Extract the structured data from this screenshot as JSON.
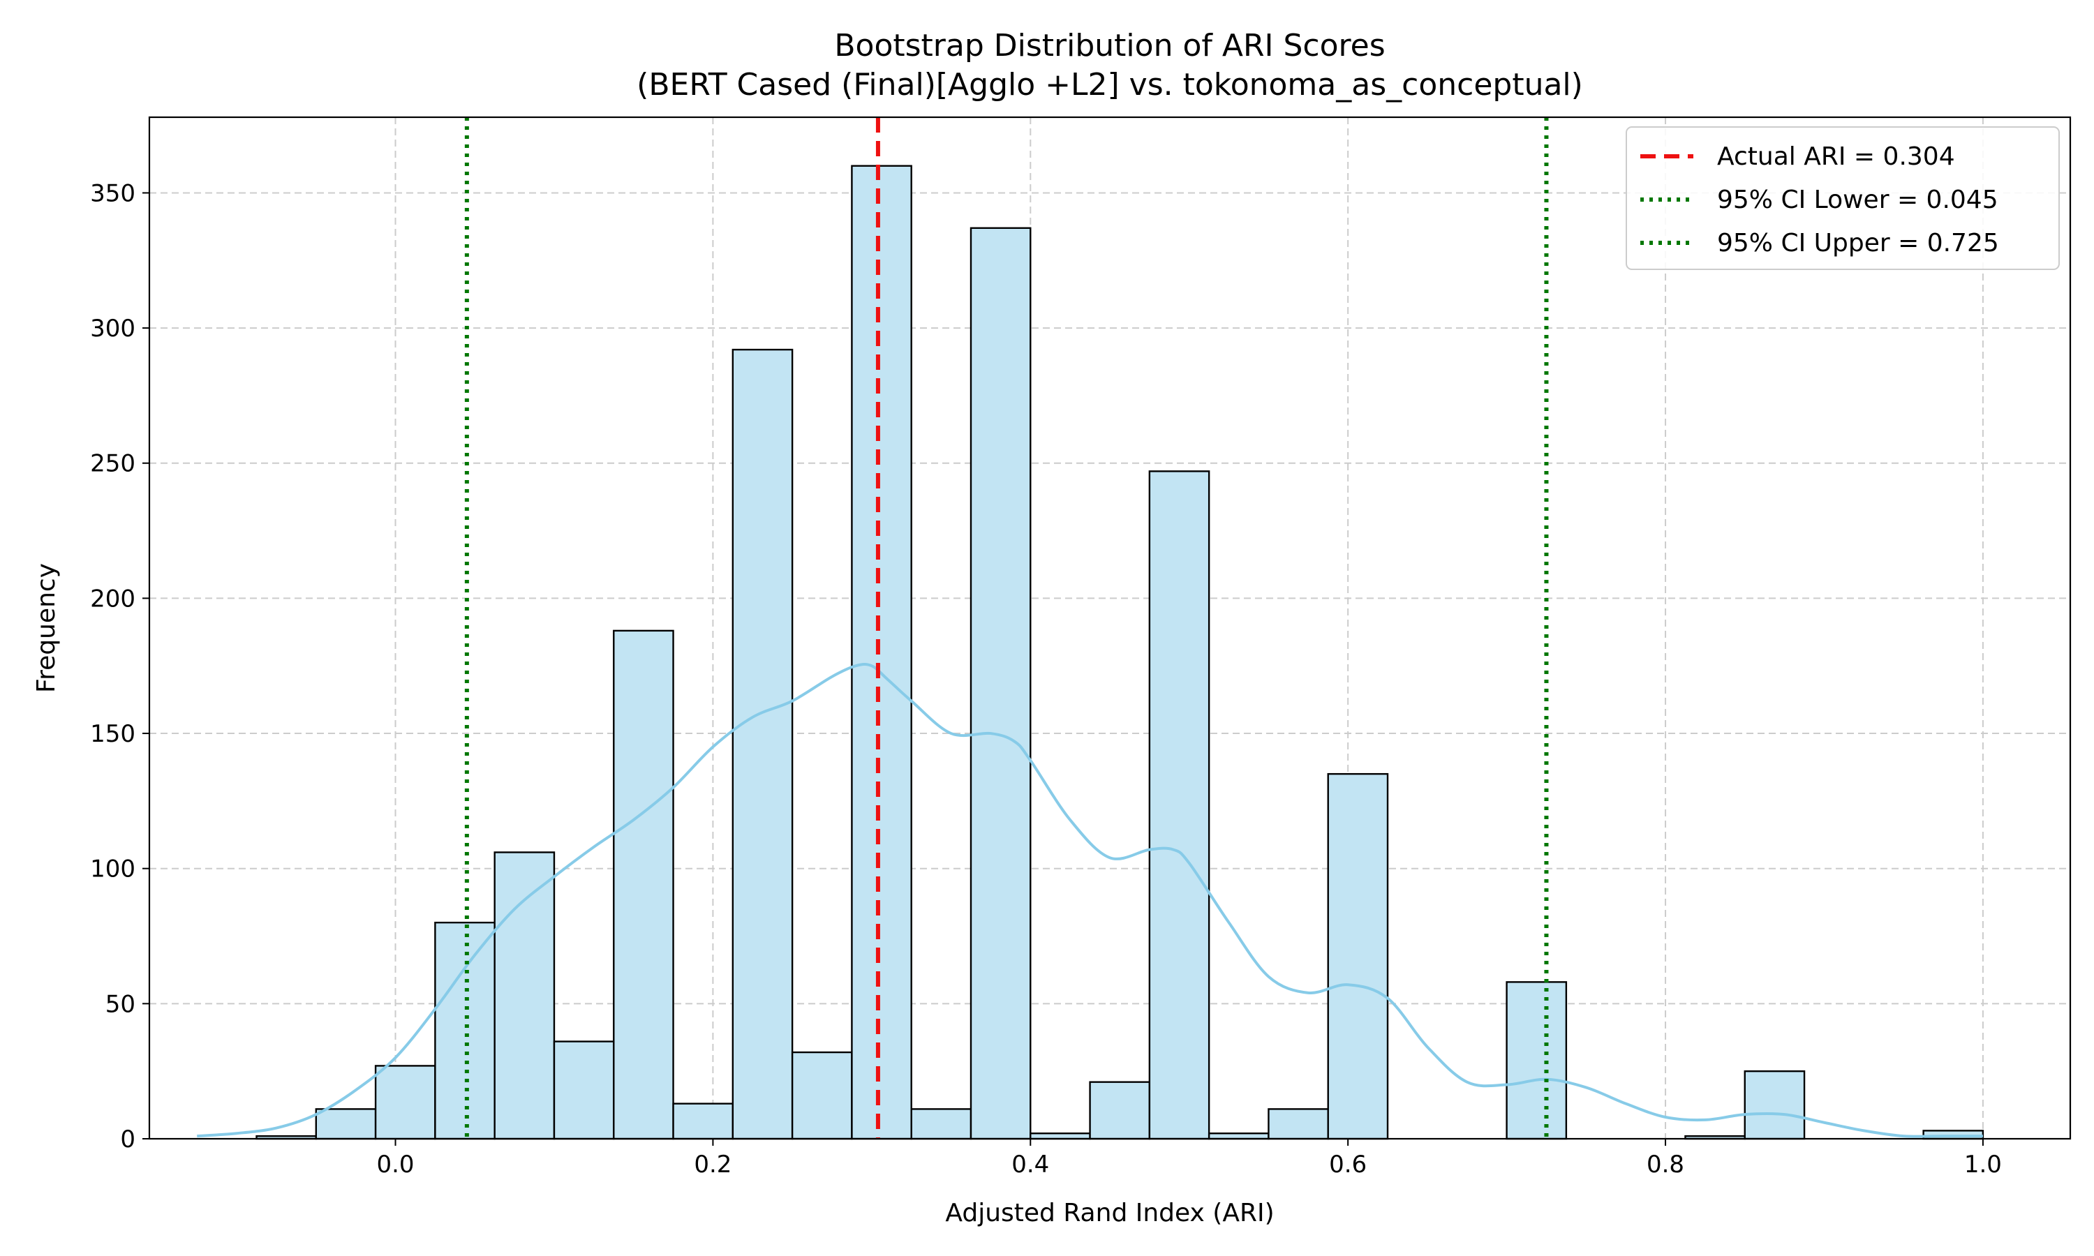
{
  "chart_data": {
    "type": "bar",
    "title_line1": "Bootstrap Distribution of ARI Scores",
    "title_line2": "(BERT Cased (Final)[Agglo +L2] vs. tokonoma_as_conceptual)",
    "xlabel": "Adjusted Rand Index (ARI)",
    "ylabel": "Frequency",
    "xlim": [
      -0.155,
      1.055
    ],
    "ylim": [
      0,
      378
    ],
    "grid": true,
    "legend_position": "top-right",
    "x_ticks": [
      0.0,
      0.2,
      0.4,
      0.6,
      0.8,
      1.0
    ],
    "x_tick_labels": [
      "0.0",
      "0.2",
      "0.4",
      "0.6",
      "0.8",
      "1.0"
    ],
    "y_ticks": [
      0,
      50,
      100,
      150,
      200,
      250,
      300,
      350
    ],
    "y_tick_labels": [
      "0",
      "50",
      "100",
      "150",
      "200",
      "250",
      "300",
      "350"
    ],
    "bins": [
      {
        "x0": -0.125,
        "x1": -0.0875,
        "count": 0
      },
      {
        "x0": -0.0875,
        "x1": -0.05,
        "count": 1
      },
      {
        "x0": -0.05,
        "x1": -0.0125,
        "count": 11
      },
      {
        "x0": -0.0125,
        "x1": 0.025,
        "count": 27
      },
      {
        "x0": 0.025,
        "x1": 0.0625,
        "count": 80
      },
      {
        "x0": 0.0625,
        "x1": 0.1,
        "count": 106
      },
      {
        "x0": 0.1,
        "x1": 0.1375,
        "count": 36
      },
      {
        "x0": 0.1375,
        "x1": 0.175,
        "count": 188
      },
      {
        "x0": 0.175,
        "x1": 0.2125,
        "count": 13
      },
      {
        "x0": 0.2125,
        "x1": 0.25,
        "count": 292
      },
      {
        "x0": 0.25,
        "x1": 0.2875,
        "count": 32
      },
      {
        "x0": 0.2875,
        "x1": 0.325,
        "count": 360
      },
      {
        "x0": 0.325,
        "x1": 0.3625,
        "count": 11
      },
      {
        "x0": 0.3625,
        "x1": 0.4,
        "count": 337
      },
      {
        "x0": 0.4,
        "x1": 0.4375,
        "count": 2
      },
      {
        "x0": 0.4375,
        "x1": 0.475,
        "count": 21
      },
      {
        "x0": 0.475,
        "x1": 0.5125,
        "count": 247
      },
      {
        "x0": 0.5125,
        "x1": 0.55,
        "count": 2
      },
      {
        "x0": 0.55,
        "x1": 0.5875,
        "count": 11
      },
      {
        "x0": 0.5875,
        "x1": 0.625,
        "count": 135
      },
      {
        "x0": 0.625,
        "x1": 0.6625,
        "count": 0
      },
      {
        "x0": 0.6625,
        "x1": 0.7,
        "count": 0
      },
      {
        "x0": 0.7,
        "x1": 0.7375,
        "count": 58
      },
      {
        "x0": 0.7375,
        "x1": 0.775,
        "count": 0
      },
      {
        "x0": 0.775,
        "x1": 0.8125,
        "count": 0
      },
      {
        "x0": 0.8125,
        "x1": 0.85,
        "count": 1
      },
      {
        "x0": 0.85,
        "x1": 0.8875,
        "count": 25
      },
      {
        "x0": 0.8875,
        "x1": 0.925,
        "count": 0
      },
      {
        "x0": 0.925,
        "x1": 0.9625,
        "count": 0
      },
      {
        "x0": 0.9625,
        "x1": 1.0,
        "count": 3
      }
    ],
    "kde": {
      "x": [
        -0.125,
        -0.1,
        -0.075,
        -0.05,
        -0.025,
        0.0,
        0.025,
        0.05,
        0.075,
        0.1,
        0.125,
        0.15,
        0.175,
        0.2,
        0.225,
        0.25,
        0.275,
        0.29,
        0.3,
        0.31,
        0.325,
        0.35,
        0.375,
        0.39,
        0.4,
        0.425,
        0.45,
        0.475,
        0.49,
        0.5,
        0.525,
        0.55,
        0.575,
        0.6,
        0.625,
        0.65,
        0.675,
        0.7,
        0.725,
        0.75,
        0.775,
        0.8,
        0.825,
        0.85,
        0.875,
        0.9,
        0.925,
        0.95,
        0.975,
        1.0
      ],
      "y": [
        1,
        2,
        4,
        9,
        18,
        30,
        48,
        68,
        85,
        97,
        108,
        118,
        130,
        145,
        156,
        162,
        171,
        175,
        175,
        170,
        162,
        150,
        150,
        147,
        140,
        118,
        104,
        107,
        107,
        102,
        80,
        60,
        54,
        57,
        52,
        34,
        21,
        20,
        22,
        19,
        13,
        8,
        7,
        9,
        9,
        6,
        3,
        1,
        1,
        1
      ]
    },
    "series": [
      {
        "name": "Actual ARI = 0.304",
        "x": 0.304,
        "color": "#ee1111",
        "style": "dashed"
      },
      {
        "name": "95% CI Lower = 0.045",
        "x": 0.045,
        "color": "#007700",
        "style": "dotted"
      },
      {
        "name": "95% CI Upper = 0.725",
        "x": 0.725,
        "color": "#007700",
        "style": "dotted"
      }
    ],
    "colors": {
      "bar_fill": "#c2e4f3",
      "bar_edge": "#000000",
      "kde_line": "#87cbe8",
      "grid": "#cccccc"
    }
  }
}
